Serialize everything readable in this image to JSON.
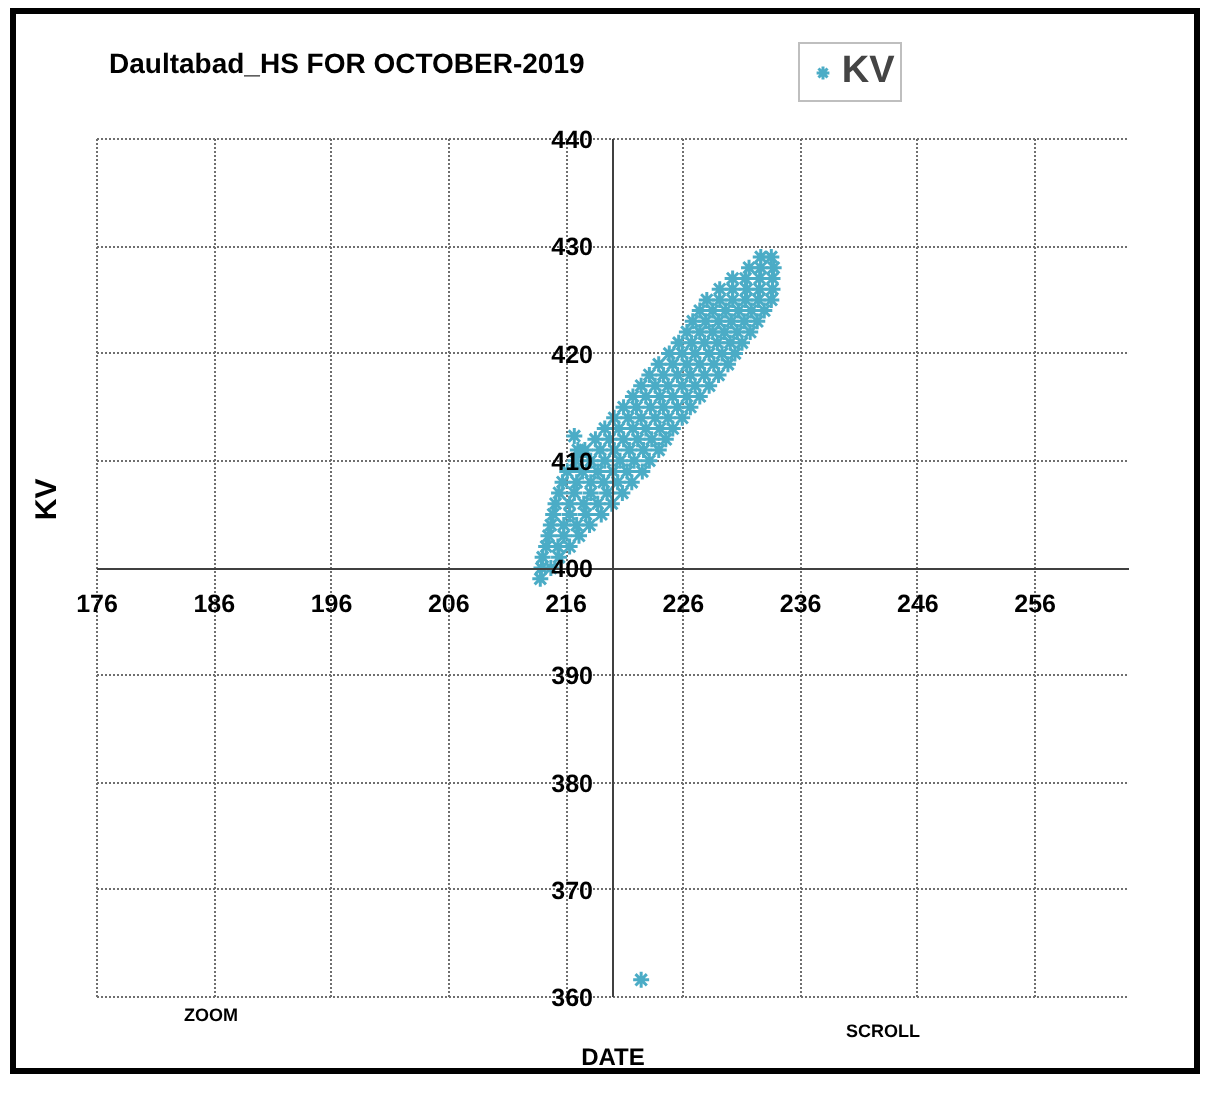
{
  "chart_data": {
    "type": "scatter",
    "title": "Daultabad_HS FOR OCTOBER-2019",
    "xlabel": "DATE",
    "ylabel": "KV",
    "annotations": [
      "ZOOM",
      "SCROLL"
    ],
    "series": [
      {
        "name": "KV",
        "color": "#4bacc6",
        "x": [
          213.8,
          213.9,
          214.7,
          214.0,
          215.4,
          214.3,
          215.3,
          216.3,
          214.5,
          215.8,
          217.1,
          214.7,
          215.8,
          216.9,
          218.0,
          214.9,
          216.3,
          217.7,
          219.0,
          215.1,
          216.3,
          217.5,
          218.7,
          219.9,
          215.4,
          216.7,
          218.1,
          219.5,
          220.8,
          215.7,
          216.9,
          218.1,
          219.2,
          220.4,
          221.6,
          216.1,
          217.4,
          218.7,
          220.0,
          221.2,
          222.5,
          216.8,
          218.1,
          219.3,
          220.6,
          221.8,
          223.1,
          217.6,
          218.9,
          220.1,
          221.4,
          222.6,
          223.9,
          218.5,
          219.7,
          220.9,
          222.1,
          223.3,
          224.5,
          219.3,
          220.5,
          221.7,
          222.8,
          224.0,
          225.1,
          220.1,
          221.3,
          222.4,
          223.6,
          224.7,
          225.9,
          220.9,
          222.0,
          223.2,
          224.3,
          225.5,
          226.6,
          221.7,
          222.8,
          224.0,
          225.1,
          226.3,
          227.4,
          222.4,
          223.6,
          224.7,
          225.9,
          227.0,
          228.2,
          223.1,
          224.3,
          225.5,
          226.6,
          227.8,
          229.0,
          223.9,
          225.1,
          226.3,
          227.4,
          228.6,
          229.8,
          224.8,
          225.9,
          227.0,
          228.2,
          229.3,
          230.4,
          225.6,
          226.7,
          227.8,
          228.9,
          230.0,
          231.0,
          226.3,
          227.4,
          228.5,
          229.5,
          230.6,
          231.7,
          226.8,
          227.9,
          229.0,
          230.1,
          231.2,
          232.3,
          227.4,
          228.5,
          229.6,
          230.7,
          231.8,
          232.9,
          228.0,
          229.1,
          230.2,
          231.3,
          232.4,
          233.5,
          229.1,
          230.2,
          231.4,
          232.5,
          233.6,
          230.2,
          231.3,
          232.5,
          233.6,
          231.6,
          232.6,
          233.7,
          232.6,
          233.5,
          216.7,
          217.0,
          222.4
        ],
        "values": [
          399,
          400,
          400,
          401,
          401,
          402,
          402,
          402,
          403,
          403,
          403,
          404,
          404,
          404,
          404,
          405,
          405,
          405,
          405,
          406,
          406,
          406,
          406,
          406,
          407,
          407,
          407,
          407,
          407,
          408,
          408,
          408,
          408,
          408,
          408,
          409,
          409,
          409,
          409,
          409,
          409,
          410,
          410,
          410,
          410,
          410,
          410,
          411,
          411,
          411,
          411,
          411,
          411,
          412,
          412,
          412,
          412,
          412,
          412,
          413,
          413,
          413,
          413,
          413,
          413,
          414,
          414,
          414,
          414,
          414,
          414,
          415,
          415,
          415,
          415,
          415,
          415,
          416,
          416,
          416,
          416,
          416,
          416,
          417,
          417,
          417,
          417,
          417,
          417,
          418,
          418,
          418,
          418,
          418,
          418,
          419,
          419,
          419,
          419,
          419,
          419,
          420,
          420,
          420,
          420,
          420,
          420,
          421,
          421,
          421,
          421,
          421,
          421,
          422,
          422,
          422,
          422,
          422,
          422,
          423,
          423,
          423,
          423,
          423,
          423,
          424,
          424,
          424,
          424,
          424,
          424,
          425,
          425,
          425,
          425,
          425,
          425,
          426,
          426,
          426,
          426,
          426,
          427,
          427,
          427,
          427,
          428,
          428,
          428,
          429,
          429,
          412.3,
          411.0,
          361.6
        ]
      }
    ],
    "xlim": [
      176,
      264
    ],
    "ylim": [
      360,
      440
    ],
    "xticks": [
      176,
      186,
      196,
      206,
      216,
      226,
      236,
      246,
      256
    ],
    "yticks": [
      360,
      370,
      380,
      390,
      400,
      410,
      420,
      430,
      440
    ],
    "grid": true,
    "legend": "top right",
    "marker": "cross"
  }
}
